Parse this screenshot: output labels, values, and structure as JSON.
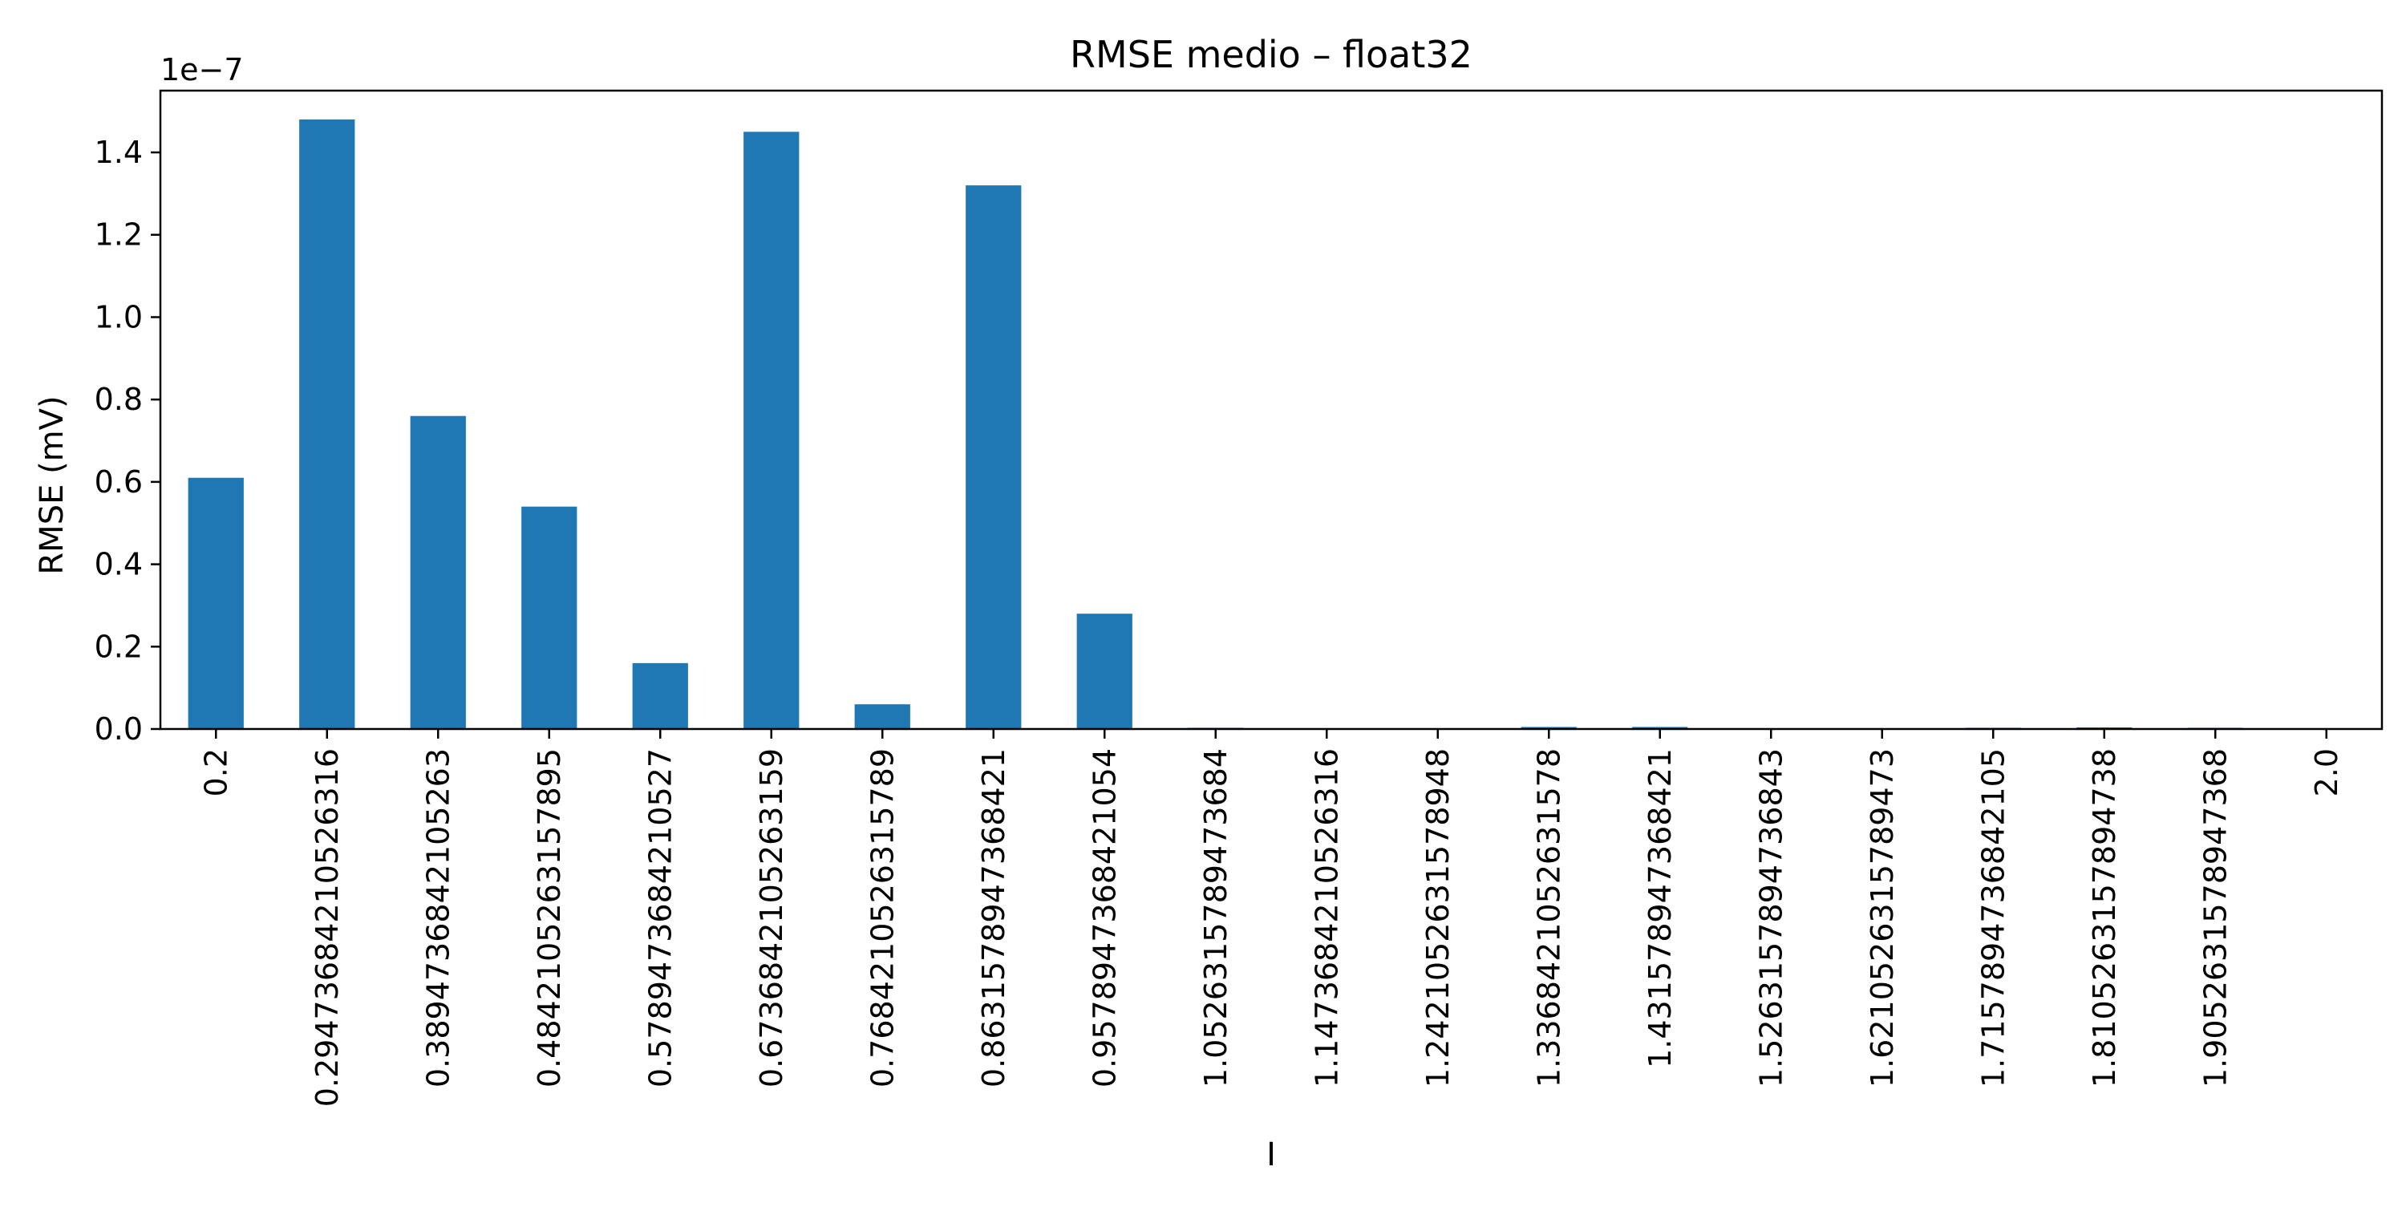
{
  "chart_data": {
    "type": "bar",
    "title": "RMSE medio – float32",
    "xlabel": "I",
    "ylabel": "RMSE (mV)",
    "y_offset_label": "1e−7",
    "y_scale_factor": 1e-07,
    "ylim": [
      0,
      1.55
    ],
    "yticks": [
      0.0,
      0.2,
      0.4,
      0.6,
      0.8,
      1.0,
      1.2,
      1.4
    ],
    "ytick_labels": [
      "0.0",
      "0.2",
      "0.4",
      "0.6",
      "0.8",
      "1.0",
      "1.2",
      "1.4"
    ],
    "grid": false,
    "legend": "none",
    "bar_color": "#1f77b4",
    "categories": [
      "0.2",
      "0.29473684210526316",
      "0.3894736842105263",
      "0.4842105263157895",
      "0.5789473684210527",
      "0.6736842105263159",
      "0.7684210526315789",
      "0.8631578947368421",
      "0.9578947368421054",
      "1.0526315789473684",
      "1.1473684210526316",
      "1.2421052631578948",
      "1.3368421052631578",
      "1.431578947368421",
      "1.5263157894736843",
      "1.6210526315789473",
      "1.7157894736842105",
      "1.8105263157894738",
      "1.9052631578947368",
      "2.0"
    ],
    "values": [
      0.61,
      1.48,
      0.76,
      0.54,
      0.16,
      1.45,
      0.06,
      1.32,
      0.28,
      0.003,
      0.0,
      0.0,
      0.005,
      0.005,
      0.0,
      0.0,
      0.003,
      0.004,
      0.003,
      0.0
    ]
  }
}
